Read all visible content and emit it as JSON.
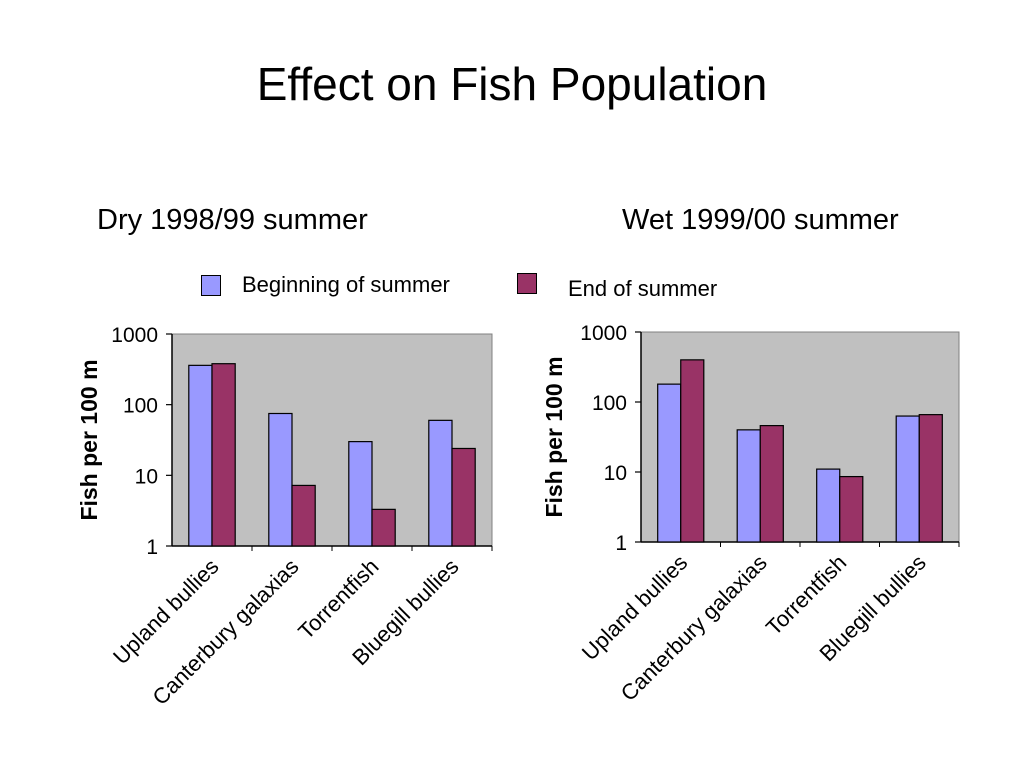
{
  "title": "Effect on Fish Population",
  "legend": {
    "items": [
      {
        "label": "Beginning of summer",
        "color": "#9999ff"
      },
      {
        "label": "End of summer",
        "color": "#993366"
      }
    ]
  },
  "colors": {
    "plot_background": "#c0c0c0",
    "axis": "#000000"
  },
  "chart_data": [
    {
      "type": "bar",
      "title": "Dry 1998/99 summer",
      "ylabel": "Fish per 100 m",
      "yscale": "log",
      "ylim": [
        1,
        1000
      ],
      "yticks": [
        "1",
        "10",
        "100",
        "1000"
      ],
      "categories": [
        "Upland bullies",
        "Canterbury galaxias",
        "Torrentfish",
        "Bluegill bullies"
      ],
      "series": [
        {
          "name": "Beginning of summer",
          "values": [
            360,
            75,
            30,
            60
          ]
        },
        {
          "name": "End of summer",
          "values": [
            380,
            7.2,
            3.3,
            24
          ]
        }
      ],
      "grid": false,
      "legend_position": "top"
    },
    {
      "type": "bar",
      "title": "Wet 1999/00 summer",
      "ylabel": "Fish per 100 m",
      "yscale": "log",
      "ylim": [
        1,
        1000
      ],
      "yticks": [
        "1",
        "10",
        "100",
        "1000"
      ],
      "categories": [
        "Upland bullies",
        "Canterbury galaxias",
        "Torrentfish",
        "Bluegill bullies"
      ],
      "series": [
        {
          "name": "Beginning of summer",
          "values": [
            180,
            40,
            11,
            63
          ]
        },
        {
          "name": "End of summer",
          "values": [
            400,
            46,
            8.6,
            66
          ]
        }
      ],
      "grid": false,
      "legend_position": "top"
    }
  ]
}
